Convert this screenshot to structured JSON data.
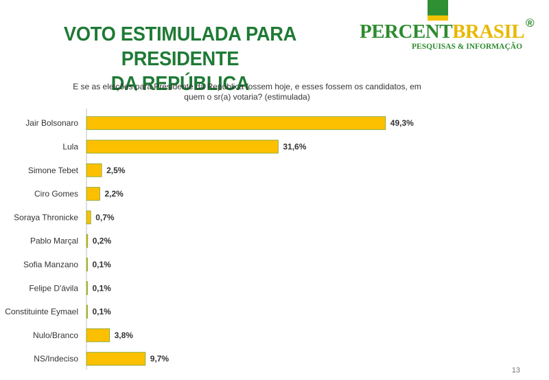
{
  "slide": {
    "title_lines": [
      "VOTO ESTIMULADA PARA PRESIDENTE",
      "DA REPÚBLICA"
    ],
    "question_lines": [
      "E se as eleições para Presidente da República fossem hoje, e esses fossem os candidatos, em",
      "quem o sr(a) votaria?  (estimulada)"
    ],
    "page_number": "13"
  },
  "logo": {
    "word_part1": "PERCENT",
    "word_part2": "BRASIL",
    "registered": "®",
    "tagline": "PESQUISAS & INFORMAÇÃO"
  },
  "colors": {
    "title": "#1f7a35",
    "bar_fill": "#fcc000",
    "bar_border": "#7aa33a",
    "axis": "#bfbfbf"
  },
  "chart_data": {
    "type": "bar",
    "orientation": "horizontal",
    "categories": [
      "Jair Bolsonaro",
      "Lula",
      "Simone Tebet",
      "Ciro Gomes",
      "Soraya Thronicke",
      "Pablo Marçal",
      "Sofia Manzano",
      "Felipe D'ávila",
      "Constituinte Eymael",
      "Nulo/Branco",
      "NS/Indeciso"
    ],
    "values": [
      49.3,
      31.6,
      2.5,
      2.2,
      0.7,
      0.2,
      0.1,
      0.1,
      0.1,
      3.8,
      9.7
    ],
    "data_labels": [
      "49,3%",
      "31,6%",
      "2,5%",
      "2,2%",
      "0,7%",
      "0,2%",
      "0,1%",
      "0,1%",
      "0,1%",
      "3,8%",
      "9,7%"
    ],
    "xlim": [
      0,
      50
    ],
    "grid": false,
    "legend": "none"
  }
}
